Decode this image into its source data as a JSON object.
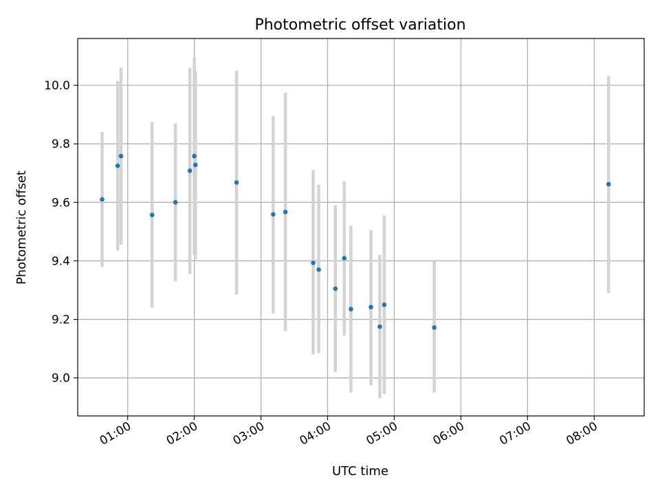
{
  "chart_data": {
    "type": "scatter",
    "title": "Photometric offset variation",
    "xlabel": "UTC time",
    "ylabel": "Photometric offset",
    "x_ticks": [
      "01:00",
      "02:00",
      "03:00",
      "04:00",
      "05:00",
      "06:00",
      "07:00",
      "08:00"
    ],
    "y_ticks": [
      "9.0",
      "9.2",
      "9.4",
      "9.6",
      "9.8",
      "10.0"
    ],
    "xlim": [
      "00:15",
      "08:45"
    ],
    "ylim": [
      8.87,
      10.16
    ],
    "grid": true,
    "marker_color": "#1f77b4",
    "errorbar_color": "#d3d3d3",
    "points": [
      {
        "x": "00:37",
        "y": 9.61,
        "y_low": 9.38,
        "y_high": 9.84
      },
      {
        "x": "00:51",
        "y": 9.725,
        "y_low": 9.435,
        "y_high": 10.015
      },
      {
        "x": "00:54",
        "y": 9.758,
        "y_low": 9.455,
        "y_high": 10.06
      },
      {
        "x": "01:22",
        "y": 9.557,
        "y_low": 9.24,
        "y_high": 9.875
      },
      {
        "x": "01:43",
        "y": 9.6,
        "y_low": 9.33,
        "y_high": 9.87
      },
      {
        "x": "01:56",
        "y": 9.708,
        "y_low": 9.355,
        "y_high": 10.06
      },
      {
        "x": "02:00",
        "y": 9.758,
        "y_low": 9.42,
        "y_high": 10.095
      },
      {
        "x": "02:01",
        "y": 9.728,
        "y_low": 9.405,
        "y_high": 10.05
      },
      {
        "x": "02:38",
        "y": 9.668,
        "y_low": 9.285,
        "y_high": 10.05
      },
      {
        "x": "03:11",
        "y": 9.559,
        "y_low": 9.22,
        "y_high": 9.895
      },
      {
        "x": "03:22",
        "y": 9.567,
        "y_low": 9.16,
        "y_high": 9.975
      },
      {
        "x": "03:47",
        "y": 9.393,
        "y_low": 9.08,
        "y_high": 9.71
      },
      {
        "x": "03:52",
        "y": 9.37,
        "y_low": 9.085,
        "y_high": 9.66
      },
      {
        "x": "04:07",
        "y": 9.305,
        "y_low": 9.02,
        "y_high": 9.59
      },
      {
        "x": "04:15",
        "y": 9.409,
        "y_low": 9.145,
        "y_high": 9.672
      },
      {
        "x": "04:21",
        "y": 9.235,
        "y_low": 8.95,
        "y_high": 9.52
      },
      {
        "x": "04:39",
        "y": 9.242,
        "y_low": 8.975,
        "y_high": 9.505
      },
      {
        "x": "04:47",
        "y": 9.175,
        "y_low": 8.93,
        "y_high": 9.42
      },
      {
        "x": "04:51",
        "y": 9.25,
        "y_low": 8.945,
        "y_high": 9.555
      },
      {
        "x": "05:36",
        "y": 9.172,
        "y_low": 8.95,
        "y_high": 9.4
      },
      {
        "x": "08:13",
        "y": 9.662,
        "y_low": 9.29,
        "y_high": 10.032
      }
    ]
  }
}
